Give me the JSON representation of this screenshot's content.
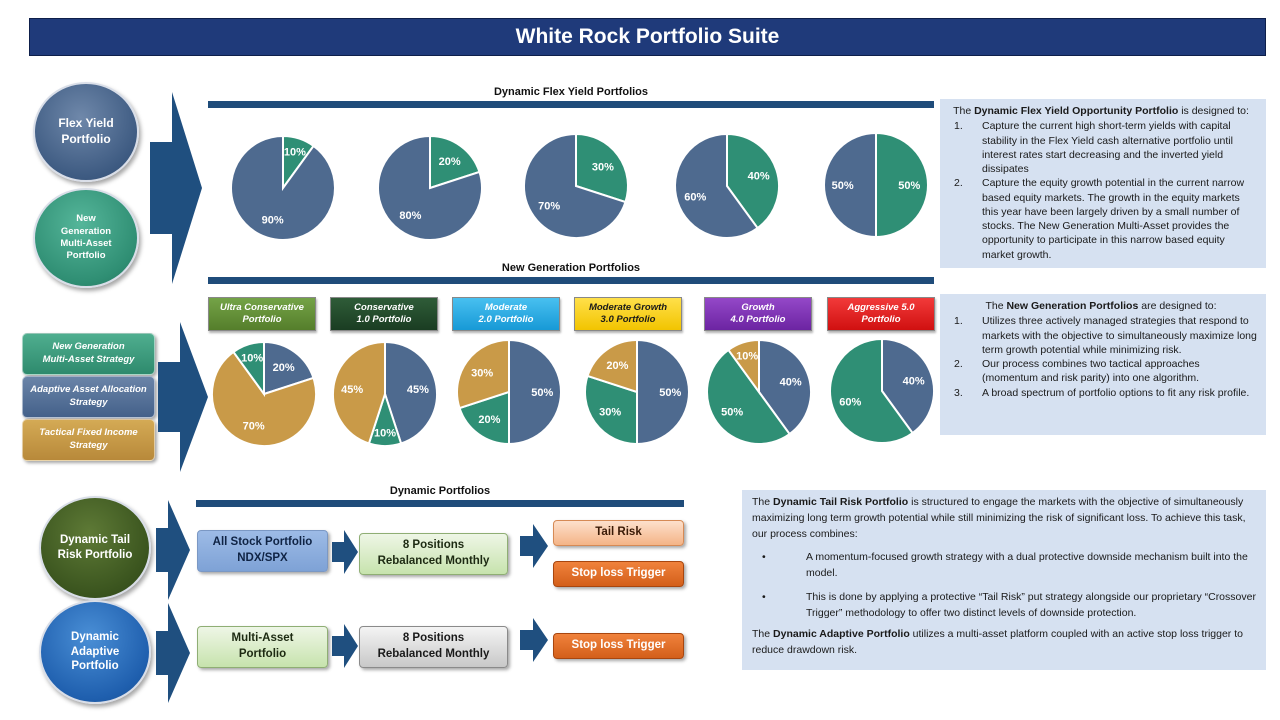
{
  "title": "White Rock Portfolio Suite",
  "colors": {
    "blue_slice": "#4e6a8f",
    "green_slice": "#2f8f75",
    "gold_slice": "#c99a48",
    "arrow": "#1f4f7f"
  },
  "circles": {
    "flex_yield": "Flex Yield\nPortfolio",
    "new_generation": "New\nGeneration\nMulti-Asset\nPortfolio",
    "dynamic_tail": "Dynamic Tail\nRisk Portfolio",
    "dynamic_adaptive": "Dynamic\nAdaptive\nPortfolio"
  },
  "flex_section": {
    "title": "Dynamic Flex Yield Portfolios",
    "pies": [
      {
        "slices": [
          {
            "value": 10,
            "label": "10%",
            "color": "green"
          },
          {
            "value": 90,
            "label": "90%",
            "color": "blue"
          }
        ]
      },
      {
        "slices": [
          {
            "value": 20,
            "label": "20%",
            "color": "green"
          },
          {
            "value": 80,
            "label": "80%",
            "color": "blue"
          }
        ]
      },
      {
        "slices": [
          {
            "value": 30,
            "label": "30%",
            "color": "green"
          },
          {
            "value": 70,
            "label": "70%",
            "color": "blue"
          }
        ]
      },
      {
        "slices": [
          {
            "value": 40,
            "label": "40%",
            "color": "green"
          },
          {
            "value": 60,
            "label": "60%",
            "color": "blue"
          }
        ]
      },
      {
        "slices": [
          {
            "value": 50,
            "label": "50%",
            "color": "green"
          },
          {
            "value": 50,
            "label": "50%",
            "color": "blue"
          }
        ]
      }
    ],
    "info": {
      "intro_pre": "The ",
      "intro_bold": "Dynamic Flex Yield Opportunity  Portfolio",
      "intro_post": "  is designed to:",
      "items": [
        {
          "num": "1.",
          "text": "Capture the current high short-term yields with capital stability in the Flex Yield cash alternative portfolio until interest rates start decreasing and the inverted yield dissipates"
        },
        {
          "num": "2.",
          "text": "Capture the equity growth potential in the current narrow based equity markets.  The growth in the equity markets this year have been largely driven by a small number of stocks. The New Generation Multi-Asset provides the opportunity to participate in this narrow based equity market growth."
        }
      ]
    }
  },
  "newgen_section": {
    "title": "New Generation Portfolios",
    "strategies": [
      "New Generation\nMulti-Asset Strategy",
      "Adaptive Asset Allocation\nStrategy",
      "Tactical Fixed Income\nStrategy"
    ],
    "tabs": [
      {
        "label": "Ultra Conservative\nPortfolio",
        "color": "#5c8a2e"
      },
      {
        "label": "Conservative\n1.0 Portfolio",
        "color": "#1f4a2a"
      },
      {
        "label": "Moderate\n2.0 Portfolio",
        "color": "#1ea7e0"
      },
      {
        "label": "Moderate Growth\n3.0 Portfolio",
        "color": "#ffd000"
      },
      {
        "label": "Growth\n4.0 Portfolio",
        "color": "#7a2fb0"
      },
      {
        "label": "Aggressive 5.0\nPortfolio",
        "color": "#e01a1a"
      }
    ],
    "pies": [
      {
        "slices": [
          {
            "value": 20,
            "label": "20%",
            "color": "blue"
          },
          {
            "value": 70,
            "label": "70%",
            "color": "gold"
          },
          {
            "value": 10,
            "label": "10%",
            "color": "green"
          }
        ]
      },
      {
        "slices": [
          {
            "value": 45,
            "label": "45%",
            "color": "blue"
          },
          {
            "value": 10,
            "label": "10%",
            "color": "green"
          },
          {
            "value": 45,
            "label": "45%",
            "color": "gold"
          }
        ]
      },
      {
        "slices": [
          {
            "value": 50,
            "label": "50%",
            "color": "blue"
          },
          {
            "value": 20,
            "label": "20%",
            "color": "green"
          },
          {
            "value": 30,
            "label": "30%",
            "color": "gold"
          }
        ]
      },
      {
        "slices": [
          {
            "value": 50,
            "label": "50%",
            "color": "blue"
          },
          {
            "value": 30,
            "label": "30%",
            "color": "green"
          },
          {
            "value": 20,
            "label": "20%",
            "color": "gold"
          }
        ]
      },
      {
        "slices": [
          {
            "value": 40,
            "label": "40%",
            "color": "blue"
          },
          {
            "value": 50,
            "label": "50%",
            "color": "green"
          },
          {
            "value": 10,
            "label": "10%",
            "color": "gold"
          }
        ]
      },
      {
        "slices": [
          {
            "value": 40,
            "label": "40%",
            "color": "blue"
          },
          {
            "value": 60,
            "label": "60%",
            "color": "green"
          }
        ]
      }
    ],
    "info": {
      "intro_pre": "The ",
      "intro_bold": "New Generation Portfolios",
      "intro_post": "  are designed to:",
      "items": [
        {
          "num": "1.",
          "text": "Utilizes three actively managed strategies that respond to markets with the objective to simultaneously maximize long term growth potential while minimizing risk."
        },
        {
          "num": "2.",
          "text": "Our process combines two tactical approaches (momentum and risk parity) into one algorithm."
        },
        {
          "num": "3.",
          "text": "A broad spectrum of portfolio options to fit any risk profile."
        }
      ]
    }
  },
  "dynamic_section": {
    "title": "Dynamic Portfolios",
    "tail_flow": {
      "box1": "All Stock Portfolio\nNDX/SPX",
      "box2": "8 Positions\nRebalanced  Monthly",
      "out1": "Tail  Risk",
      "out2": "Stop loss  Trigger"
    },
    "adaptive_flow": {
      "box1": "Multi-Asset\nPortfolio",
      "box2": "8 Positions\nRebalanced  Monthly",
      "out1": "Stop loss  Trigger"
    },
    "info": {
      "p1_pre": "The ",
      "p1_bold": "Dynamic Tail Risk Portfolio",
      "p1_post": "  is structured to engage the markets with the objective of simultaneously maximizing long term growth potential while still minimizing the risk of significant loss.  To achieve this task, our process combines:",
      "bullets": [
        {
          "dot": "•",
          "text": "A momentum-focused growth strategy with a dual protective downside mechanism built into the model."
        },
        {
          "dot": "•",
          "text": "This is done by applying a protective “Tail Risk” put strategy alongside our proprietary “Crossover Trigger” methodology to offer two distinct levels of downside protection."
        }
      ],
      "p2_pre": "The ",
      "p2_bold": "Dynamic Adaptive Portfolio",
      "p2_post": "  utilizes a multi-asset platform coupled with an active stop loss trigger to reduce drawdown risk."
    }
  }
}
